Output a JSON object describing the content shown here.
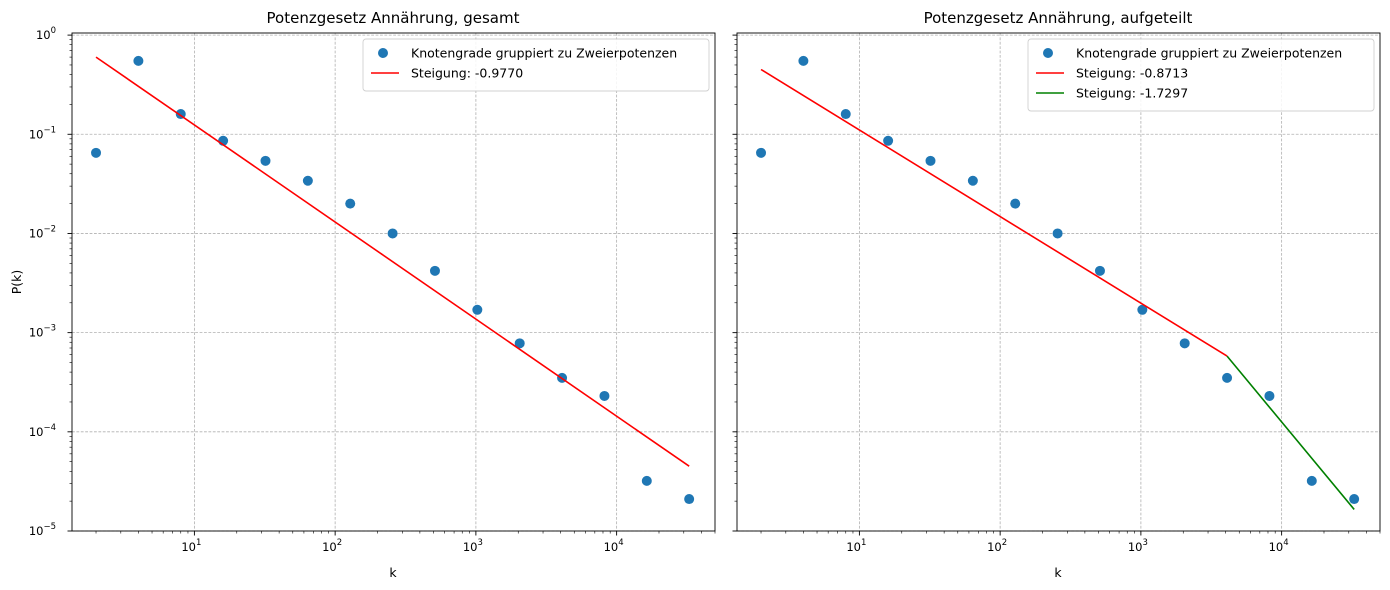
{
  "chart_data": [
    {
      "type": "scatter",
      "title": "Potenzgesetz Annährung, gesamt",
      "xlabel": "k",
      "ylabel": "P(k)",
      "xscale": "log",
      "yscale": "log",
      "xlim": [
        1.35,
        50000
      ],
      "ylim": [
        1e-05,
        1.05
      ],
      "grid": true,
      "legend_position": "top-right",
      "x_ticks": [
        {
          "value": 10,
          "base": "10",
          "exp": "1"
        },
        {
          "value": 100,
          "base": "10",
          "exp": "2"
        },
        {
          "value": 1000,
          "base": "10",
          "exp": "3"
        },
        {
          "value": 10000,
          "base": "10",
          "exp": "4"
        }
      ],
      "y_ticks": [
        {
          "value": 1e-05,
          "base": "10",
          "exp": "−5"
        },
        {
          "value": 0.0001,
          "base": "10",
          "exp": "−4"
        },
        {
          "value": 0.001,
          "base": "10",
          "exp": "−3"
        },
        {
          "value": 0.01,
          "base": "10",
          "exp": "−2"
        },
        {
          "value": 0.1,
          "base": "10",
          "exp": "−1"
        },
        {
          "value": 1,
          "base": "10",
          "exp": "0"
        }
      ],
      "series": [
        {
          "name": "Knotengrade gruppiert zu Zweierpotenzen",
          "kind": "scatter",
          "color": "#1f77b4",
          "points": [
            [
              2,
              0.065
            ],
            [
              4,
              0.55
            ],
            [
              8,
              0.16
            ],
            [
              16,
              0.086
            ],
            [
              32,
              0.054
            ],
            [
              64,
              0.034
            ],
            [
              128,
              0.02
            ],
            [
              256,
              0.01
            ],
            [
              512,
              0.0042
            ],
            [
              1024,
              0.0017
            ],
            [
              2048,
              0.00078
            ],
            [
              4096,
              0.00035
            ],
            [
              8192,
              0.00023
            ],
            [
              16384,
              3.2e-05
            ],
            [
              32768,
              2.1e-05
            ]
          ]
        },
        {
          "name": "Steigung: -0.9770",
          "kind": "line",
          "color": "#ff0000",
          "points": [
            [
              2,
              0.6
            ],
            [
              32768,
              4.5e-05
            ]
          ]
        }
      ]
    },
    {
      "type": "scatter",
      "title": "Potenzgesetz Annährung, aufgeteilt",
      "xlabel": "k",
      "ylabel": "",
      "xscale": "log",
      "yscale": "log",
      "xlim": [
        1.35,
        50000
      ],
      "ylim": [
        1e-05,
        1.05
      ],
      "grid": true,
      "legend_position": "top-right",
      "x_ticks": [
        {
          "value": 10,
          "base": "10",
          "exp": "1"
        },
        {
          "value": 100,
          "base": "10",
          "exp": "2"
        },
        {
          "value": 1000,
          "base": "10",
          "exp": "3"
        },
        {
          "value": 10000,
          "base": "10",
          "exp": "4"
        }
      ],
      "y_ticks": [
        {
          "value": 1e-05,
          "base": "",
          "exp": ""
        },
        {
          "value": 0.0001,
          "base": "",
          "exp": ""
        },
        {
          "value": 0.001,
          "base": "",
          "exp": ""
        },
        {
          "value": 0.01,
          "base": "",
          "exp": ""
        },
        {
          "value": 0.1,
          "base": "",
          "exp": ""
        },
        {
          "value": 1,
          "base": "",
          "exp": ""
        }
      ],
      "series": [
        {
          "name": "Knotengrade gruppiert zu Zweierpotenzen",
          "kind": "scatter",
          "color": "#1f77b4",
          "points": [
            [
              2,
              0.065
            ],
            [
              4,
              0.55
            ],
            [
              8,
              0.16
            ],
            [
              16,
              0.086
            ],
            [
              32,
              0.054
            ],
            [
              64,
              0.034
            ],
            [
              128,
              0.02
            ],
            [
              256,
              0.01
            ],
            [
              512,
              0.0042
            ],
            [
              1024,
              0.0017
            ],
            [
              2048,
              0.00078
            ],
            [
              4096,
              0.00035
            ],
            [
              8192,
              0.00023
            ],
            [
              16384,
              3.2e-05
            ],
            [
              32768,
              2.1e-05
            ]
          ]
        },
        {
          "name": "Steigung: -0.8713",
          "kind": "line",
          "color": "#ff0000",
          "points": [
            [
              2,
              0.45
            ],
            [
              4096,
              0.00058
            ]
          ]
        },
        {
          "name": "Steigung: -1.7297",
          "kind": "line",
          "color": "#008000",
          "points": [
            [
              4096,
              0.00058
            ],
            [
              32768,
              1.65e-05
            ]
          ]
        }
      ]
    }
  ]
}
